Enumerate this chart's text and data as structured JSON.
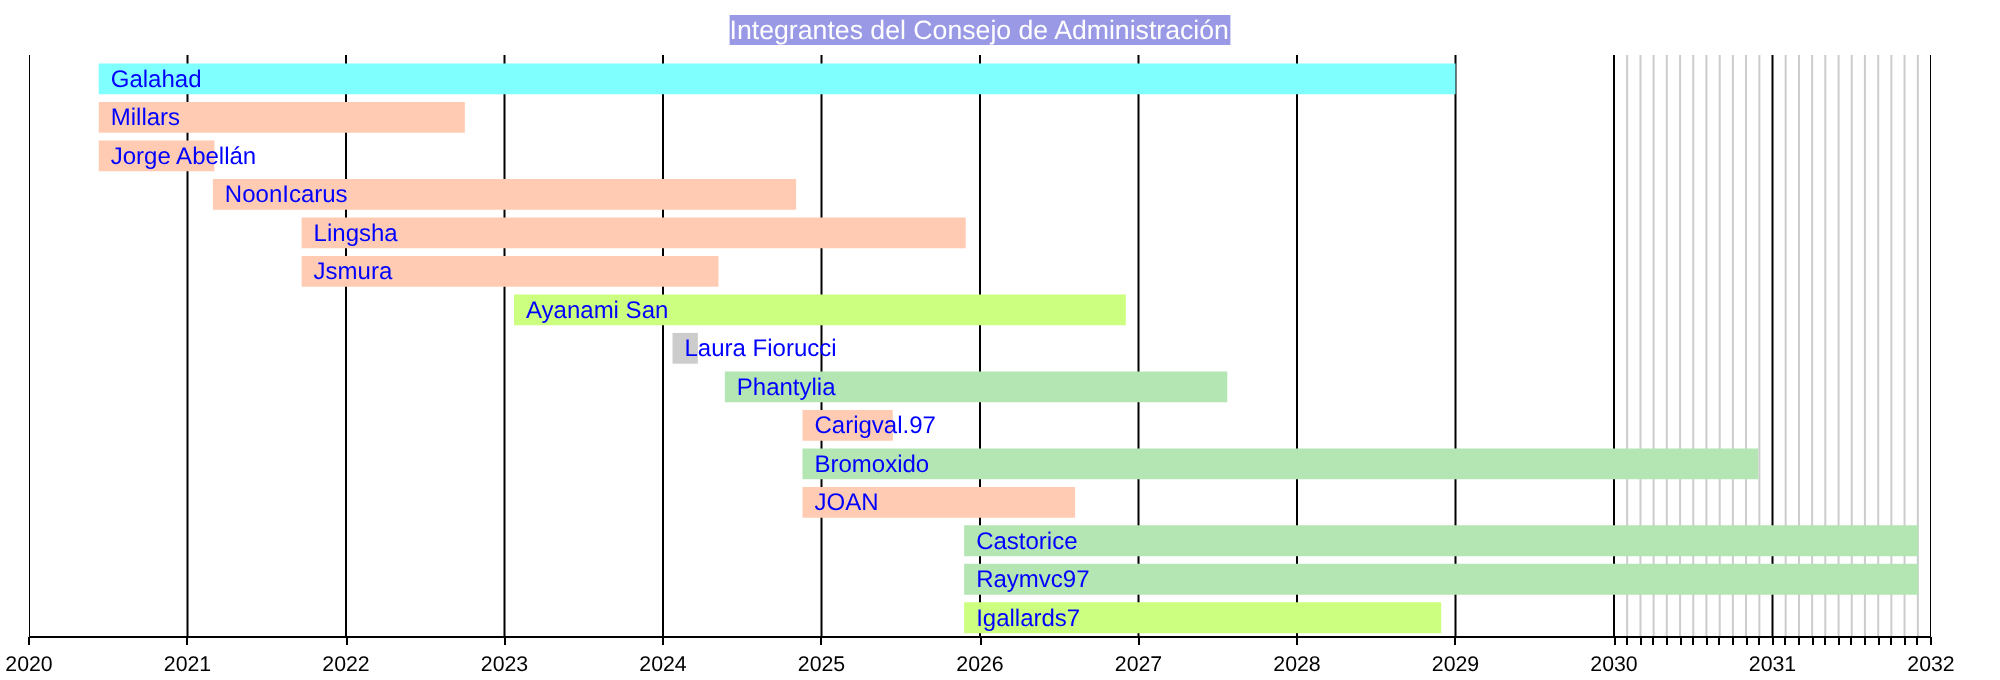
{
  "chart_data": {
    "type": "bar",
    "orientation": "horizontal",
    "title": "Integrantes del Consejo de Administración",
    "categories": [
      "Galahad",
      "Millars",
      "Jorge Abellán",
      "NoonIcarus",
      "Lingsha",
      "Jsmura",
      "Ayanami San",
      "Laura Fiorucci",
      "Phantylia",
      "Carigval.97",
      "Bromoxido",
      "JOAN",
      "Castorice",
      "Raymvc97",
      "Igallards7"
    ],
    "base": [
      2020.44,
      2020.44,
      2020.44,
      2021.16,
      2021.72,
      2021.72,
      2023.06,
      2024.06,
      2024.39,
      2024.88,
      2024.88,
      2024.88,
      2025.9,
      2025.9,
      2025.9
    ],
    "values": [
      8.56,
      2.31,
      0.73,
      3.68,
      4.19,
      2.63,
      3.86,
      0.16,
      3.17,
      0.57,
      6.03,
      1.72,
      6.02,
      6.02,
      3.01
    ],
    "colors": [
      "#80ffff",
      "#ffccb3",
      "#ffccb3",
      "#ffccb3",
      "#ffccb3",
      "#ffccb3",
      "#ccff80",
      "#cccccc",
      "#b3e6b3",
      "#ffccb3",
      "#b3e6b3",
      "#ffccb3",
      "#b3e6b3",
      "#b3e6b3",
      "#ccff80"
    ],
    "xlim": [
      2020,
      2032
    ],
    "xticks": [
      2020,
      2021,
      2022,
      2023,
      2024,
      2025,
      2026,
      2027,
      2028,
      2029,
      2030,
      {
        "value": 2030.083,
        "label": null
      },
      {
        "value": 2030.167,
        "label": null
      },
      {
        "value": 2030.25,
        "label": null
      },
      {
        "value": 2030.333,
        "label": null
      },
      {
        "value": 2030.417,
        "label": null
      },
      {
        "value": 2030.5,
        "label": null
      },
      {
        "value": 2030.583,
        "label": null
      },
      {
        "value": 2030.667,
        "label": null
      },
      {
        "value": 2030.75,
        "label": null
      },
      {
        "value": 2030.833,
        "label": null
      },
      {
        "value": 2030.917,
        "label": null
      },
      2031,
      {
        "value": 2031.083,
        "label": null
      },
      {
        "value": 2031.167,
        "label": null
      },
      {
        "value": 2031.25,
        "label": null
      },
      {
        "value": 2031.333,
        "label": null
      },
      {
        "value": 2031.417,
        "label": null
      },
      {
        "value": 2031.5,
        "label": null
      },
      {
        "value": 2031.583,
        "label": null
      },
      {
        "value": 2031.667,
        "label": null
      },
      {
        "value": 2031.75,
        "label": null
      },
      {
        "value": 2031.833,
        "label": null
      },
      {
        "value": 2031.917,
        "label": null
      },
      2032
    ],
    "grid": "x",
    "tick_labels": "x"
  }
}
